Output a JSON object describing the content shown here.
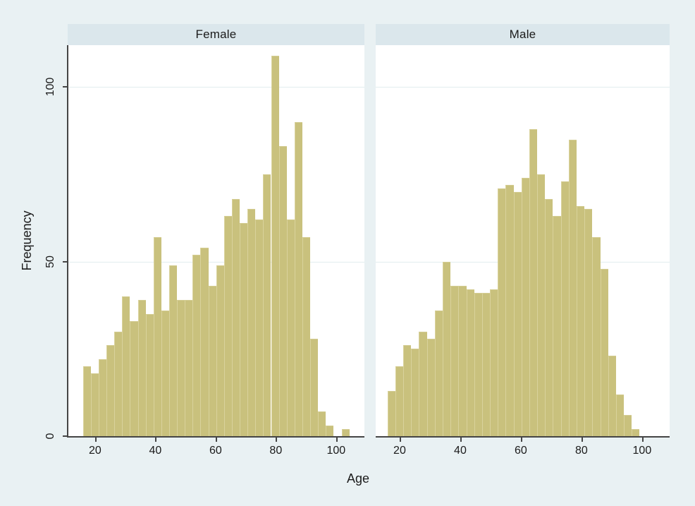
{
  "figure": {
    "kind": "stata-style faceted histogram",
    "panel_titles": [
      "Female",
      "Male"
    ]
  },
  "chart_data": {
    "type": "bar",
    "subtype": "histogram-faceted",
    "title": "",
    "xlabel": "Age",
    "ylabel": "Frequency",
    "x_ticks": [
      20,
      40,
      60,
      80,
      100
    ],
    "y_ticks": [
      0,
      50,
      100
    ],
    "ylim": [
      0,
      112
    ],
    "grid": "horizontal-gridlines-at-50-and-100",
    "legend_position": "none",
    "bin_start_age": 16,
    "bin_width": 2.6,
    "series": [
      {
        "name": "Female",
        "x_domain": [
          10.9,
          109.4
        ],
        "frequencies": [
          20,
          18,
          22,
          26,
          30,
          40,
          33,
          39,
          35,
          57,
          36,
          49,
          39,
          39,
          52,
          54,
          43,
          49,
          63,
          68,
          61,
          65,
          62,
          75,
          109,
          83,
          62,
          90,
          57,
          28,
          7,
          3,
          0,
          2
        ]
      },
      {
        "name": "Male",
        "x_domain": [
          12.1,
          109.1
        ],
        "frequencies": [
          13,
          20,
          26,
          25,
          30,
          28,
          36,
          50,
          43,
          43,
          42,
          41,
          41,
          42,
          71,
          72,
          70,
          74,
          88,
          75,
          68,
          63,
          73,
          85,
          66,
          65,
          57,
          48,
          23,
          12,
          6,
          2
        ]
      }
    ],
    "colors": {
      "bar_fill": "#c9c17d",
      "bar_edge": "#d9d29c",
      "background": "#e9f1f3",
      "strip_background": "#dbe7ec",
      "plot_background": "#ffffff",
      "gridline": "#e2edef",
      "axis": "#454545",
      "text": "#1b1b1b"
    }
  }
}
